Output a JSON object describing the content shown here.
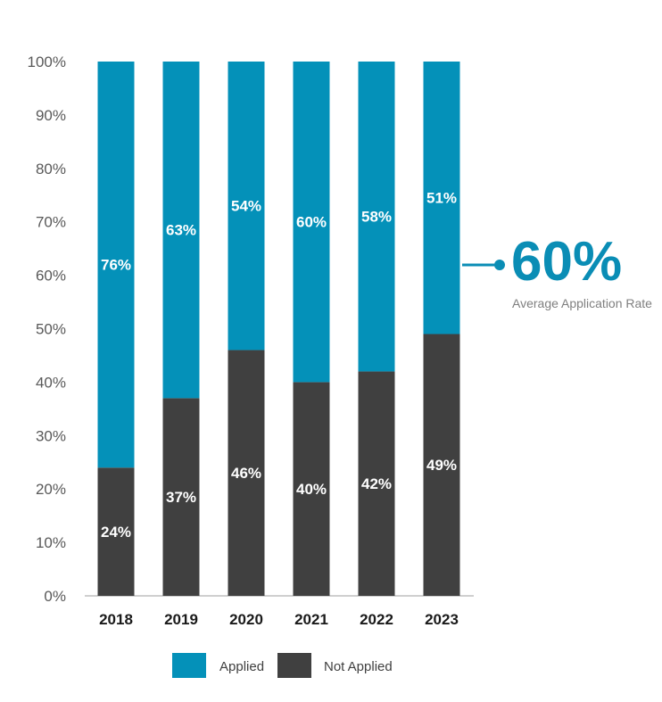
{
  "chart_data": {
    "type": "bar",
    "stacked": true,
    "title": "",
    "xlabel": "",
    "ylabel": "",
    "ylim": [
      0,
      100
    ],
    "y_ticks": [
      "0%",
      "10%",
      "20%",
      "30%",
      "40%",
      "50%",
      "60%",
      "70%",
      "80%",
      "90%",
      "100%"
    ],
    "categories": [
      "2018",
      "2019",
      "2020",
      "2021",
      "2022",
      "2023"
    ],
    "series": [
      {
        "name": "Not Applied",
        "values": [
          24,
          37,
          46,
          40,
          42,
          49
        ],
        "labels": [
          "24%",
          "37%",
          "46%",
          "40%",
          "42%",
          "49%"
        ],
        "color": "#404040"
      },
      {
        "name": "Applied",
        "values": [
          76,
          63,
          54,
          60,
          58,
          51
        ],
        "labels": [
          "76%",
          "63%",
          "54%",
          "60%",
          "58%",
          "51%"
        ],
        "color": "#0491b9"
      }
    ],
    "legend": {
      "position": "bottom",
      "items": [
        "Applied",
        "Not Applied"
      ]
    },
    "callout": {
      "value_text": "60%",
      "value": 60,
      "caption": "Average Application Rate",
      "color": "#0a8db5"
    }
  }
}
